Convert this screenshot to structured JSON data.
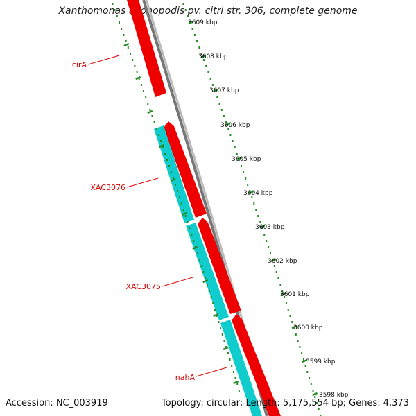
{
  "header": {
    "title": "Xanthomonas axonopodis pv. citri str. 306, complete genome"
  },
  "footer": {
    "accession": "Accession: NC_003919",
    "summary": "Topology: circular; Length: 5,175,554 bp; Genes: 4,373"
  },
  "ruler": {
    "ticks": [
      "3609 kbp",
      "3608 kbp",
      "3607 kbp",
      "3606 kbp",
      "3605 kbp",
      "3604 kbp",
      "3603 kbp",
      "3602 kbp",
      "3601 kbp",
      "3600 kbp",
      "3599 kbp",
      "3598 kbp"
    ]
  },
  "genes": [
    {
      "name": "cirA",
      "strand": "forward"
    },
    {
      "name": "XAC3076",
      "strand": "reverse"
    },
    {
      "name": "XAC3075",
      "strand": "reverse"
    },
    {
      "name": "nahA",
      "strand": "reverse"
    }
  ],
  "colors": {
    "forward_gene": "#ee0000",
    "reverse_gene": "#11cccc",
    "backbone": "#888888",
    "ruler_ticks": "#228B22",
    "gene_labels": "#dd0000"
  }
}
